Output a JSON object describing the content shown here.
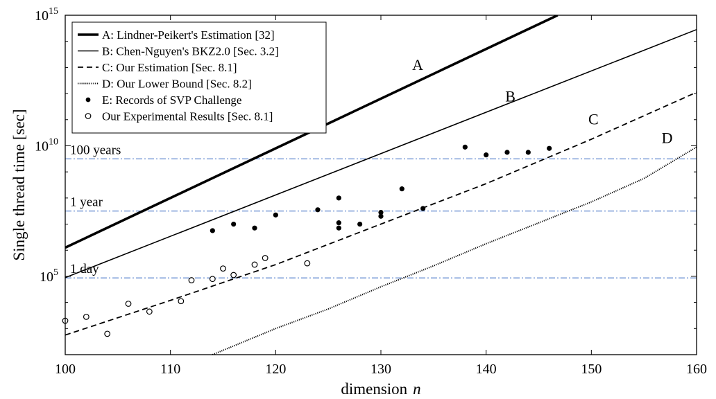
{
  "chart_data": {
    "type": "line",
    "xlabel": "dimension",
    "xlabel_var": "n",
    "ylabel": "Single thread time [sec]",
    "xlim": [
      100,
      160
    ],
    "ylim_log10": [
      2.0,
      15.0
    ],
    "yscale": "log",
    "x_ticks": [
      100,
      110,
      120,
      130,
      140,
      150,
      160
    ],
    "y_ticks": [
      {
        "value_log10": 5,
        "base": "10",
        "exp": "5"
      },
      {
        "value_log10": 10,
        "base": "10",
        "exp": "10"
      },
      {
        "value_log10": 15,
        "base": "10",
        "exp": "15"
      }
    ],
    "grid": false,
    "legend_position": "top-left",
    "series": [
      {
        "key": "A",
        "name": "A: Lindner-Peikert's Estimation [32]",
        "style": "thick",
        "label": "A",
        "x": [
          100,
          146.8
        ],
        "y_log10": [
          6.1,
          15.0
        ]
      },
      {
        "key": "B",
        "name": "B: Chen-Nguyen's BKZ2.0 [Sec. 3.2]",
        "style": "solid",
        "label": "B",
        "x": [
          100,
          160
        ],
        "y_log10": [
          4.95,
          14.45
        ]
      },
      {
        "key": "C",
        "name": "C: Our Estimation [Sec. 8.1]",
        "style": "dashed",
        "label": "C",
        "x": [
          100,
          110,
          120,
          130,
          140,
          150,
          160
        ],
        "y_log10": [
          2.75,
          4.08,
          5.45,
          7.0,
          8.55,
          10.25,
          12.05
        ]
      },
      {
        "key": "D",
        "name": "D: Our Lower Bound [Sec. 8.2]",
        "style": "dotted",
        "label": "D",
        "x": [
          114,
          120,
          125,
          130,
          135,
          140,
          145,
          150,
          155,
          160
        ],
        "y_log10": [
          2.0,
          3.0,
          3.75,
          4.6,
          5.4,
          6.25,
          7.05,
          7.85,
          8.75,
          9.95
        ]
      }
    ],
    "records": {
      "name": "E: Records of SVP Challenge",
      "x": [
        114,
        116,
        118,
        120,
        124,
        126,
        126,
        126,
        128,
        130,
        130,
        132,
        134,
        138,
        140,
        142,
        144,
        146
      ],
      "y_log10": [
        6.75,
        7.0,
        6.85,
        7.35,
        7.55,
        8.0,
        7.05,
        6.85,
        7.0,
        7.45,
        7.3,
        8.35,
        7.6,
        9.95,
        9.65,
        9.75,
        9.75,
        9.9
      ]
    },
    "experiments": {
      "name": "Our Experimental Results [Sec. 8.1]",
      "x": [
        100,
        102,
        104,
        106,
        108,
        111,
        112,
        114,
        115,
        116,
        118,
        119,
        123
      ],
      "y_log10": [
        3.3,
        3.45,
        2.8,
        3.95,
        3.65,
        4.05,
        4.85,
        4.9,
        5.3,
        5.05,
        5.45,
        5.7,
        5.5
      ]
    },
    "reference_lines": [
      {
        "label": "100 years",
        "y_log10": 9.5
      },
      {
        "label": "1 year",
        "y_log10": 7.5
      },
      {
        "label": "1 day",
        "y_log10": 4.94
      }
    ]
  },
  "colors": {
    "axis": "#000000",
    "reference_line": "#4a78c8",
    "series": "#000000"
  }
}
